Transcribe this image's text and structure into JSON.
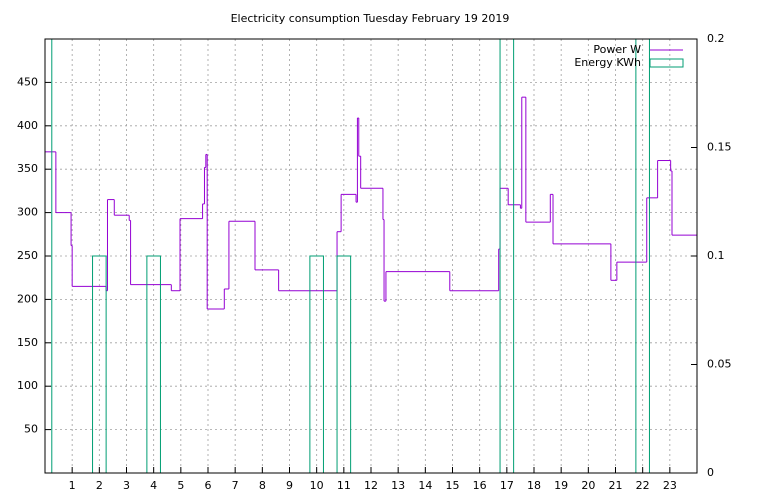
{
  "chart_data": {
    "type": "step",
    "title": "Electricity consumption Tuesday February 19 2019",
    "xlim": [
      0,
      24
    ],
    "xticks": [
      1,
      2,
      3,
      4,
      5,
      6,
      7,
      8,
      9,
      10,
      11,
      12,
      13,
      14,
      15,
      16,
      17,
      18,
      19,
      20,
      21,
      22,
      23
    ],
    "ylim": [
      0,
      500
    ],
    "yticks": [
      50,
      100,
      150,
      200,
      250,
      300,
      350,
      400,
      450
    ],
    "y2lim": [
      0,
      0.2
    ],
    "y2ticks": [
      0,
      0.05,
      0.1,
      0.15,
      0.2
    ],
    "grid": true,
    "legend": "top-right",
    "series": [
      {
        "name": "Power W",
        "color": "#9400d3",
        "type": "step",
        "x": [
          0,
          0.4,
          0.96,
          1.0,
          2.25,
          2.3,
          2.55,
          3.1,
          3.15,
          4.65,
          4.97,
          5.8,
          5.87,
          5.92,
          5.97,
          6.6,
          6.77,
          7.73,
          8.6,
          10.75,
          10.9,
          11.45,
          11.5,
          11.55,
          11.62,
          12.44,
          12.48,
          12.55,
          14.9,
          16.7,
          16.75,
          17.05,
          17.5,
          17.55,
          17.7,
          18.6,
          18.7,
          20.83,
          21.05,
          22.15,
          22.55,
          23.03,
          23.08
        ],
        "values": [
          370,
          300,
          262,
          215,
          210,
          315,
          297,
          291,
          217,
          210,
          293,
          310,
          352,
          367,
          189,
          212,
          290,
          234,
          210,
          278,
          321,
          312,
          409,
          365,
          328,
          292,
          198,
          232,
          210,
          258,
          328,
          309,
          305,
          433,
          289,
          321,
          264,
          222,
          243,
          317,
          360,
          348,
          274
        ]
      },
      {
        "name": "Energy KWh",
        "color": "#009e73",
        "type": "boxes",
        "axis": "y2",
        "x": [
          0,
          2,
          4,
          10,
          11,
          17,
          22
        ],
        "values": [
          0.2,
          0.1,
          0.1,
          0.1,
          0.1,
          0.2,
          0.2
        ]
      }
    ]
  }
}
